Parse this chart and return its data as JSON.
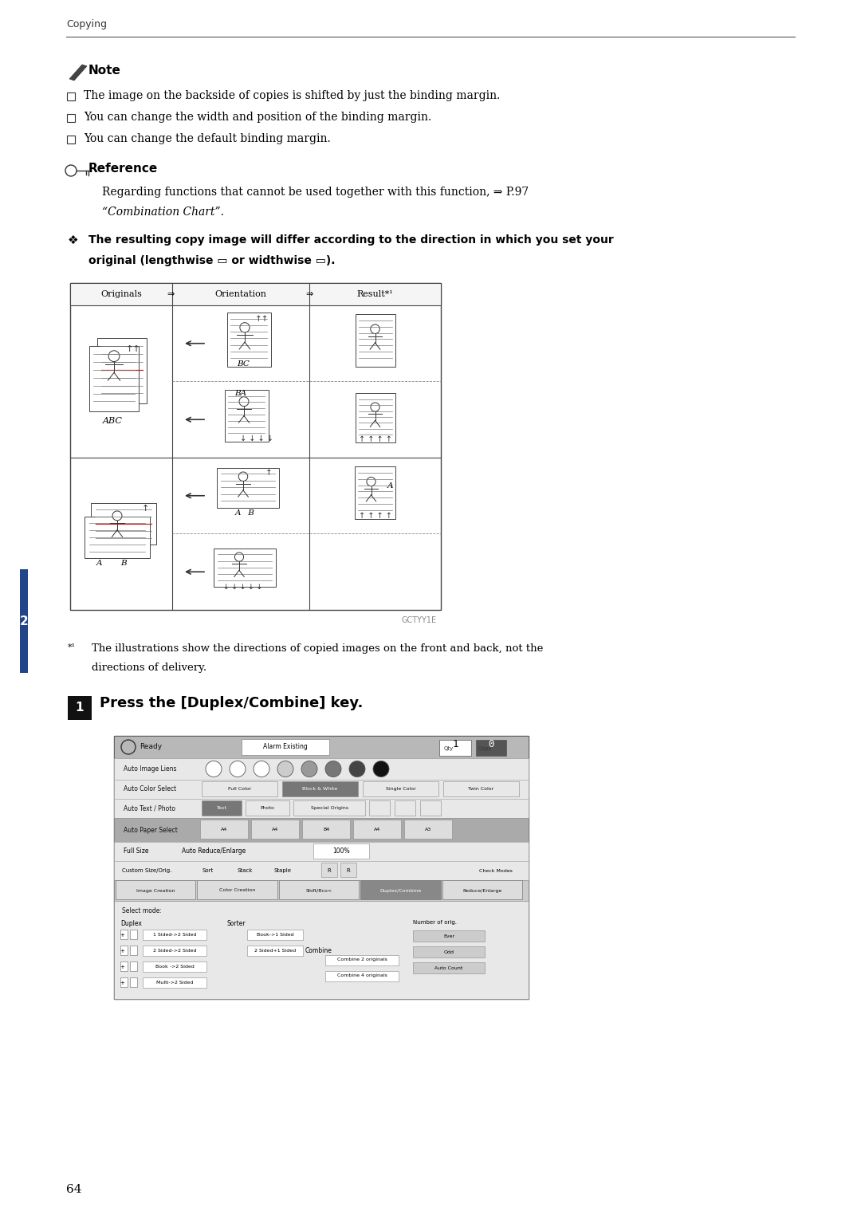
{
  "page_width": 10.8,
  "page_height": 15.29,
  "bg_color": "#ffffff",
  "header_text": "Copying",
  "note_title": "Note",
  "note_bullets": [
    "The image on the backside of copies is shifted by just the binding margin.",
    "You can change the width and position of the binding margin.",
    "You can change the default binding margin."
  ],
  "ref_title": "Reference",
  "ref_line1": "Regarding functions that cannot be used together with this function, ⇒ P.97",
  "ref_line2": "“Combination Chart”.",
  "diamond_line1": "The resulting copy image will differ according to the direction in which you set your",
  "diamond_line2": "original (lengthwise ▭ or widthwise ▭).",
  "table_headers": [
    "Originals",
    "Orientation",
    "Result*¹"
  ],
  "footnote_line1": "The illustrations show the directions of copied images on the front and back, not the",
  "footnote_line2": "directions of delivery.",
  "step_num": "1",
  "step_text": "Press the [Duplex/Combine] key.",
  "watermark_text": "GCTYY1E",
  "page_number": "64",
  "lm": 0.83,
  "rm": 9.97
}
